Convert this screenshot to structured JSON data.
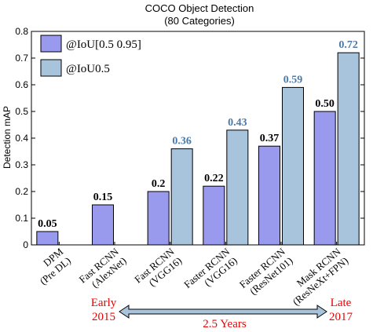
{
  "chart_data": {
    "type": "bar",
    "title": "COCO Object Detection",
    "subtitle": "(80 Categories)",
    "xlabel": "",
    "ylabel": "Detection mAP",
    "ylim": [
      0,
      0.8
    ],
    "yticks": [
      "0",
      "0.1",
      "0.2",
      "0.3",
      "0.4",
      "0.5",
      "0.6",
      "0.7",
      "0.8"
    ],
    "categories": [
      [
        "DPM",
        "(Pre DL)"
      ],
      [
        "Fast RCNN",
        "(AlexNet)"
      ],
      [
        "Fast RCNN",
        "(VGG16)"
      ],
      [
        "Faster RCNN",
        "(VGG16)"
      ],
      [
        "Faster RCNN",
        "(ResNet101)"
      ],
      [
        "Mask RCNN",
        "(ResNeXt+FPN)"
      ]
    ],
    "series": [
      {
        "name": "@IoU[0.5 0.95]",
        "color": "#9999ee",
        "label_color": "#000000",
        "values": [
          0.05,
          0.15,
          0.2,
          0.22,
          0.37,
          0.5
        ],
        "labels": [
          "0.05",
          "0.15",
          "0.2",
          "0.22",
          "0.37",
          "0.50"
        ]
      },
      {
        "name": "@IoU0.5",
        "color": "#a8c4dc",
        "label_color": "#4a7aa8",
        "values": [
          null,
          null,
          0.36,
          0.43,
          0.59,
          0.72
        ],
        "labels": [
          "",
          "",
          "0.36",
          "0.43",
          "0.59",
          "0.72"
        ]
      }
    ],
    "legend_position": "top-left",
    "grid": false
  },
  "timeline": {
    "start_label": [
      "Early",
      "2015"
    ],
    "end_label": [
      "Late",
      "2017"
    ],
    "duration": "2.5 Years",
    "text_color": "#ee0000",
    "arrow_color": "#a8c4dc"
  }
}
